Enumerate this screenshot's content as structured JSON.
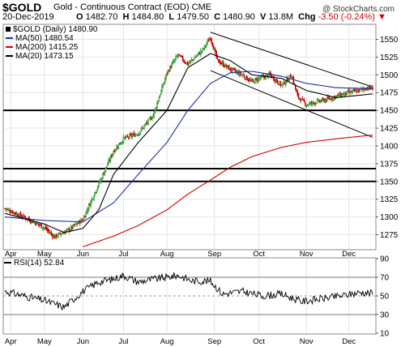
{
  "header": {
    "symbol": "$GOLD",
    "description": "Gold - Continuous Contract (EOD) CME",
    "date": "20-Dec-2019",
    "open_label": "O",
    "open": "1482.70",
    "high_label": "H",
    "high": "1484.80",
    "low_label": "L",
    "low": "1479.50",
    "close_label": "C",
    "close": "1480.90",
    "volume_label": "V",
    "volume": "13.8M",
    "change_label": "Chg",
    "change": "-3.50 (-0.24%)",
    "change_arrow": "▼",
    "brand": "@ StockCharts.com",
    "brand_sub": "",
    "up_color": "#1a8f1a",
    "down_color": "#cc0000"
  },
  "legend": {
    "main_label": "$GOLD (Daily) 1480.90",
    "ma50": "MA(50) 1480.54",
    "ma200": "MA(200) 1415.25",
    "ma20": "MA(20) 1473.15",
    "ma50_color": "#1c2fa8",
    "ma200_color": "#cc0000",
    "ma20_color": "#000000"
  },
  "chart_data": [
    {
      "type": "candlestick",
      "title": "$GOLD (Daily)",
      "ylim": [
        1255,
        1570
      ],
      "y_ticks": [
        1275,
        1300,
        1325,
        1350,
        1375,
        1400,
        1425,
        1450,
        1475,
        1500,
        1525,
        1550
      ],
      "x_tick_labels": [
        "Apr",
        "May",
        "Jun",
        "Jul",
        "Aug",
        "Sep",
        "Oct",
        "Nov",
        "Dec"
      ],
      "x_tick_index": [
        6,
        40,
        79,
        120,
        164,
        212,
        257,
        305,
        348
      ],
      "horizontal_lines": [
        1450,
        1368,
        1350
      ],
      "trend_lines": [
        {
          "from": [
            208,
            1560
          ],
          "to": [
            372,
            1483
          ]
        },
        {
          "from": [
            208,
            1506
          ],
          "to": [
            372,
            1412
          ]
        }
      ],
      "key_points": [
        [
          0,
          1312
        ],
        [
          22,
          1298
        ],
        [
          40,
          1285
        ],
        [
          50,
          1272
        ],
        [
          66,
          1283
        ],
        [
          79,
          1297
        ],
        [
          95,
          1347
        ],
        [
          110,
          1393
        ],
        [
          120,
          1410
        ],
        [
          135,
          1418
        ],
        [
          150,
          1443
        ],
        [
          164,
          1503
        ],
        [
          175,
          1528
        ],
        [
          185,
          1515
        ],
        [
          200,
          1535
        ],
        [
          208,
          1553
        ],
        [
          215,
          1520
        ],
        [
          228,
          1508
        ],
        [
          240,
          1500
        ],
        [
          250,
          1490
        ],
        [
          257,
          1495
        ],
        [
          268,
          1500
        ],
        [
          280,
          1485
        ],
        [
          290,
          1500
        ],
        [
          296,
          1470
        ],
        [
          305,
          1458
        ],
        [
          315,
          1462
        ],
        [
          325,
          1465
        ],
        [
          335,
          1470
        ],
        [
          348,
          1475
        ],
        [
          358,
          1478
        ],
        [
          366,
          1482
        ],
        [
          372,
          1481
        ]
      ],
      "last_close": 1480.9,
      "series": [
        {
          "name": "MA(50)",
          "last": 1480.54,
          "key_points": [
            [
              0,
              1300
            ],
            [
              40,
              1295
            ],
            [
              79,
              1293
            ],
            [
              110,
              1320
            ],
            [
              135,
              1360
            ],
            [
              164,
              1405
            ],
            [
              185,
              1450
            ],
            [
              208,
              1488
            ],
            [
              228,
              1503
            ],
            [
              250,
              1505
            ],
            [
              280,
              1498
            ],
            [
              305,
              1488
            ],
            [
              335,
              1482
            ],
            [
              372,
              1480.54
            ]
          ]
        },
        {
          "name": "MA(200)",
          "last": 1415.25,
          "key_points": [
            [
              79,
              1258
            ],
            [
              110,
              1273
            ],
            [
              135,
              1288
            ],
            [
              164,
              1310
            ],
            [
              185,
              1332
            ],
            [
              208,
              1352
            ],
            [
              228,
              1370
            ],
            [
              250,
              1385
            ],
            [
              280,
              1398
            ],
            [
              305,
              1405
            ],
            [
              335,
              1410
            ],
            [
              372,
              1415.25
            ]
          ]
        },
        {
          "name": "MA(20)",
          "last": 1473.15,
          "key_points": [
            [
              0,
              1305
            ],
            [
              40,
              1290
            ],
            [
              60,
              1278
            ],
            [
              79,
              1284
            ],
            [
              95,
              1310
            ],
            [
              110,
              1360
            ],
            [
              135,
              1405
            ],
            [
              164,
              1450
            ],
            [
              185,
              1510
            ],
            [
              208,
              1530
            ],
            [
              228,
              1520
            ],
            [
              250,
              1500
            ],
            [
              280,
              1495
            ],
            [
              305,
              1478
            ],
            [
              335,
              1468
            ],
            [
              372,
              1473.15
            ]
          ]
        }
      ]
    },
    {
      "type": "line",
      "title": "RSI(14) 52.84",
      "ylim": [
        10,
        90
      ],
      "y_ticks": [
        10,
        30,
        50,
        70,
        90
      ],
      "reference_lines": [
        30,
        70
      ],
      "midline": 50,
      "key_points": [
        [
          0,
          55
        ],
        [
          20,
          50
        ],
        [
          40,
          45
        ],
        [
          60,
          38
        ],
        [
          79,
          55
        ],
        [
          95,
          65
        ],
        [
          110,
          68
        ],
        [
          120,
          72
        ],
        [
          135,
          65
        ],
        [
          150,
          68
        ],
        [
          164,
          70
        ],
        [
          175,
          72
        ],
        [
          190,
          66
        ],
        [
          208,
          66
        ],
        [
          220,
          52
        ],
        [
          240,
          55
        ],
        [
          260,
          50
        ],
        [
          280,
          52
        ],
        [
          300,
          44
        ],
        [
          320,
          47
        ],
        [
          340,
          50
        ],
        [
          360,
          54
        ],
        [
          372,
          52.84
        ]
      ],
      "last": 52.84
    }
  ]
}
